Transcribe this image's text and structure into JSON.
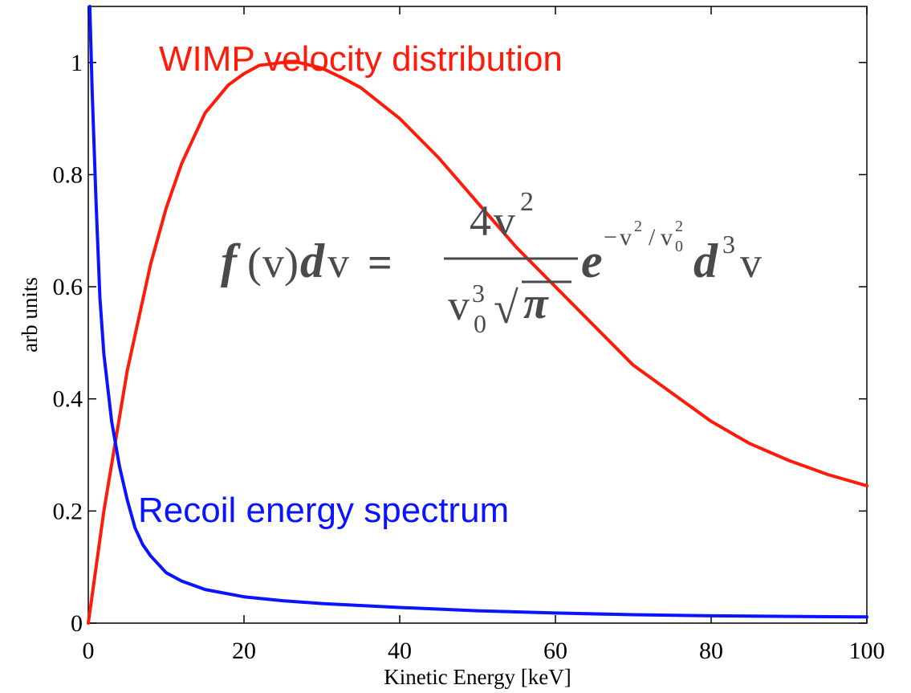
{
  "chart_data": {
    "type": "line",
    "xlabel": "Kinetic Energy [keV]",
    "ylabel": "arb units",
    "xlim": [
      0,
      100
    ],
    "ylim": [
      0,
      1.1
    ],
    "grid": false,
    "x_ticks": [
      0,
      20,
      40,
      60,
      80,
      100
    ],
    "y_ticks": [
      0,
      0.2,
      0.4,
      0.6,
      0.8,
      1
    ],
    "x_tick_labels": [
      "0",
      "20",
      "40",
      "60",
      "80",
      "100"
    ],
    "y_tick_labels": [
      "0",
      "0.2",
      "0.4",
      "0.6",
      "0.8",
      "1"
    ],
    "series": [
      {
        "name": "WIMP velocity distribution",
        "color": "#ff1a0a",
        "x": [
          0,
          2,
          5,
          8,
          10,
          12,
          15,
          18,
          20,
          22,
          25,
          27,
          30,
          33,
          35,
          40,
          45,
          50,
          55,
          60,
          65,
          70,
          75,
          80,
          85,
          90,
          95,
          100
        ],
        "y": [
          0,
          0.2,
          0.45,
          0.64,
          0.74,
          0.82,
          0.91,
          0.96,
          0.98,
          0.995,
          1.0,
          1.0,
          0.99,
          0.97,
          0.955,
          0.9,
          0.83,
          0.75,
          0.67,
          0.6,
          0.53,
          0.46,
          0.41,
          0.36,
          0.32,
          0.29,
          0.265,
          0.245
        ]
      },
      {
        "name": "Recoil energy spectrum",
        "color": "#0a14ff",
        "x": [
          0.2,
          0.5,
          1,
          1.5,
          2,
          3,
          4,
          5,
          6,
          7,
          8,
          10,
          12,
          15,
          20,
          25,
          30,
          40,
          50,
          60,
          70,
          80,
          90,
          100
        ],
        "y": [
          1.1,
          0.95,
          0.75,
          0.58,
          0.48,
          0.36,
          0.28,
          0.22,
          0.17,
          0.14,
          0.12,
          0.09,
          0.075,
          0.06,
          0.047,
          0.04,
          0.035,
          0.028,
          0.022,
          0.018,
          0.015,
          0.013,
          0.012,
          0.011
        ]
      }
    ]
  },
  "annotations": {
    "wimp_label": "WIMP velocity distribution",
    "recoil_label": "Recoil energy spectrum"
  },
  "formula": {
    "lhs_f": "f",
    "lhs_open": "(",
    "lhs_v": "v",
    "lhs_close": ")",
    "lhs_d": "d",
    "lhs_v2": "v",
    "equals": "=",
    "num_coeff": "4",
    "num_v": "v",
    "num_exp": "2",
    "den_v": "v",
    "den_sub": "0",
    "den_exp": "3",
    "den_root": "√",
    "den_pi": "π",
    "exp_base": "e",
    "exp_minus": "−",
    "exp_v": "v",
    "exp_sq": "2",
    "exp_slash": "/",
    "exp_v0": "v",
    "exp_v0_sub": "0",
    "exp_v0_sq": "2",
    "tail_d": "d",
    "tail_exp": "3",
    "tail_v": "v"
  }
}
